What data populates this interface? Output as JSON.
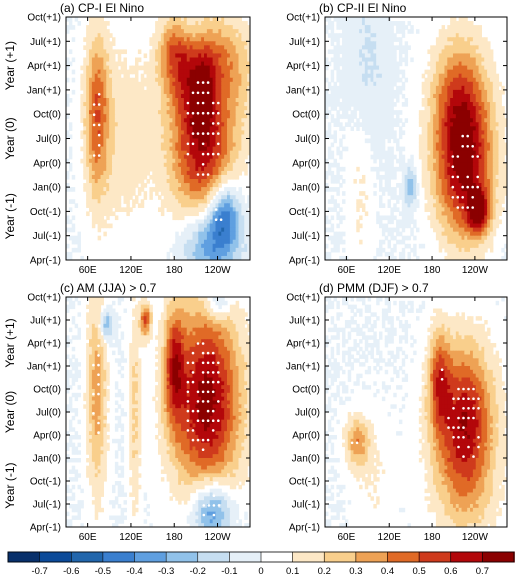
{
  "figure": {
    "colorbar": {
      "levels": [
        "-0.7",
        "-0.6",
        "-0.5",
        "-0.4",
        "-0.3",
        "-0.2",
        "-0.1",
        "0",
        "0.1",
        "0.2",
        "0.3",
        "0.4",
        "0.5",
        "0.6",
        "0.7"
      ],
      "colors": [
        "#08306b",
        "#0b4a99",
        "#2166ac",
        "#3a7fcf",
        "#5f9fe0",
        "#91c2ea",
        "#c6def1",
        "#e6f0f8",
        "#ffffff",
        "#fde8c6",
        "#f9cf8c",
        "#eea255",
        "#e06a26",
        "#cf3a1c",
        "#b3070a",
        "#8b0000"
      ]
    },
    "y_outer_labels": [
      "Year (+1)",
      "Year (0)",
      "Year (-1)"
    ]
  },
  "chart_data": [
    {
      "type": "heatmap",
      "title": "(a)  CP-I El Nino",
      "xticks": [
        "60E",
        "120E",
        "180",
        "120W"
      ],
      "yticks": [
        "Oct(+1)",
        "Jul(+1)",
        "Apr(+1)",
        "Jan(+1)",
        "Oct(0)",
        "Jul(0)",
        "Apr(0)",
        "Jan(0)",
        "Oct(-1)",
        "Jul(-1)",
        "Apr(-1)"
      ],
      "blobs": [
        {
          "lon": 73,
          "t": 4,
          "sx": 12,
          "sy": 2.4,
          "v": 0.45
        },
        {
          "lon": 220,
          "t": 4.5,
          "sx": 32,
          "sy": 3.4,
          "v": 0.72
        },
        {
          "lon": 178,
          "t": 1.3,
          "sx": 14,
          "sy": 1.0,
          "v": 0.32
        },
        {
          "lon": 235,
          "t": 2.0,
          "sx": 40,
          "sy": 1.5,
          "v": 0.28
        },
        {
          "lon": 228,
          "t": 9.3,
          "sx": 28,
          "sy": 1.2,
          "v": -0.55
        },
        {
          "lon": 250,
          "t": 8.0,
          "sx": 15,
          "sy": 1.0,
          "v": -0.45
        },
        {
          "lon": 110,
          "t": 5.0,
          "sx": 30,
          "sy": 3.0,
          "v": 0.16
        },
        {
          "lon": 215,
          "t": 0.4,
          "sx": 30,
          "sy": 1.0,
          "v": -0.25
        },
        {
          "lon": 245,
          "t": 3.0,
          "sx": 14,
          "sy": 1.2,
          "v": -0.18
        }
      ],
      "stipple": [
        {
          "lon": 220,
          "t": 4.6,
          "sx": 28,
          "sy": 2.0
        },
        {
          "lon": 73,
          "t": 4.5,
          "sx": 9,
          "sy": 1.5
        },
        {
          "lon": 240,
          "t": 8.3,
          "sx": 8,
          "sy": 0.4
        }
      ]
    },
    {
      "type": "heatmap",
      "title": "(b)  CP-II El Nino",
      "xticks": [
        "60E",
        "120E",
        "180",
        "120W"
      ],
      "yticks": [
        "Oct(+1)",
        "Jul(+1)",
        "Apr(+1)",
        "Jan(+1)",
        "Oct(0)",
        "Jul(0)",
        "Apr(0)",
        "Jan(0)",
        "Oct(-1)",
        "Jul(-1)",
        "Apr(-1)"
      ],
      "blobs": [
        {
          "lon": 225,
          "t": 6.0,
          "sx": 30,
          "sy": 2.6,
          "v": 0.72
        },
        {
          "lon": 245,
          "t": 8.0,
          "sx": 10,
          "sy": 0.6,
          "v": 0.6
        },
        {
          "lon": 215,
          "t": 3.2,
          "sx": 26,
          "sy": 1.8,
          "v": 0.25
        },
        {
          "lon": 80,
          "t": 7.0,
          "sx": 12,
          "sy": 2.5,
          "v": 0.12
        },
        {
          "lon": 90,
          "t": 2.0,
          "sx": 20,
          "sy": 2.5,
          "v": -0.12
        },
        {
          "lon": 150,
          "t": 7.0,
          "sx": 6,
          "sy": 0.6,
          "v": -0.3
        },
        {
          "lon": 225,
          "t": 9.5,
          "sx": 40,
          "sy": 1.2,
          "v": -0.08
        }
      ],
      "stipple": [
        {
          "lon": 225,
          "t": 6.4,
          "sx": 22,
          "sy": 1.8
        }
      ]
    },
    {
      "type": "heatmap",
      "title": "(c)  AM (JJA) > 0.7",
      "xticks": [
        "60E",
        "120E",
        "180",
        "120W"
      ],
      "yticks": [
        "Oct(+1)",
        "Jul(+1)",
        "Apr(+1)",
        "Jan(+1)",
        "Oct(0)",
        "Jul(0)",
        "Apr(0)",
        "Jan(0)",
        "Oct(-1)",
        "Jul(-1)",
        "Apr(-1)"
      ],
      "blobs": [
        {
          "lon": 225,
          "t": 4.5,
          "sx": 34,
          "sy": 3.0,
          "v": 0.75
        },
        {
          "lon": 180,
          "t": 3.0,
          "sx": 10,
          "sy": 1.8,
          "v": 0.45
        },
        {
          "lon": 232,
          "t": 9.3,
          "sx": 20,
          "sy": 1.0,
          "v": -0.5
        },
        {
          "lon": 73,
          "t": 4.0,
          "sx": 10,
          "sy": 3.5,
          "v": 0.35
        },
        {
          "lon": 85,
          "t": 1.2,
          "sx": 7,
          "sy": 0.5,
          "v": -0.35
        },
        {
          "lon": 240,
          "t": 0.2,
          "sx": 12,
          "sy": 0.6,
          "v": -0.3
        },
        {
          "lon": 140,
          "t": 1.0,
          "sx": 5,
          "sy": 0.5,
          "v": 0.55
        },
        {
          "lon": 125,
          "t": 5.0,
          "sx": 6,
          "sy": 3.5,
          "v": 0.22
        }
      ],
      "stipple": [
        {
          "lon": 220,
          "t": 4.3,
          "sx": 28,
          "sy": 2.4
        },
        {
          "lon": 232,
          "t": 9.2,
          "sx": 16,
          "sy": 0.7
        },
        {
          "lon": 73,
          "t": 4.0,
          "sx": 6,
          "sy": 2.2
        }
      ]
    },
    {
      "type": "heatmap",
      "title": "(d)  PMM (DJF) > 0.7",
      "xticks": [
        "60E",
        "120E",
        "180",
        "120W"
      ],
      "yticks": [
        "Oct(+1)",
        "Jul(+1)",
        "Apr(+1)",
        "Jan(+1)",
        "Oct(0)",
        "Jul(0)",
        "Apr(0)",
        "Jan(0)",
        "Oct(-1)",
        "Jul(-1)",
        "Apr(-1)"
      ],
      "blobs": [
        {
          "lon": 225,
          "t": 5.5,
          "sx": 30,
          "sy": 2.4,
          "v": 0.7
        },
        {
          "lon": 190,
          "t": 3.5,
          "sx": 10,
          "sy": 1.5,
          "v": 0.4
        },
        {
          "lon": 75,
          "t": 6.3,
          "sx": 12,
          "sy": 0.8,
          "v": 0.35
        },
        {
          "lon": 225,
          "t": 9.0,
          "sx": 35,
          "sy": 1.5,
          "v": 0.1
        },
        {
          "lon": 100,
          "t": 8.0,
          "sx": 20,
          "sy": 2.0,
          "v": 0.1
        }
      ],
      "stipple": [
        {
          "lon": 225,
          "t": 5.5,
          "sx": 25,
          "sy": 1.8
        },
        {
          "lon": 73,
          "t": 6.3,
          "sx": 6,
          "sy": 0.4
        },
        {
          "lon": 190,
          "t": 3.5,
          "sx": 5,
          "sy": 0.8
        }
      ]
    }
  ]
}
